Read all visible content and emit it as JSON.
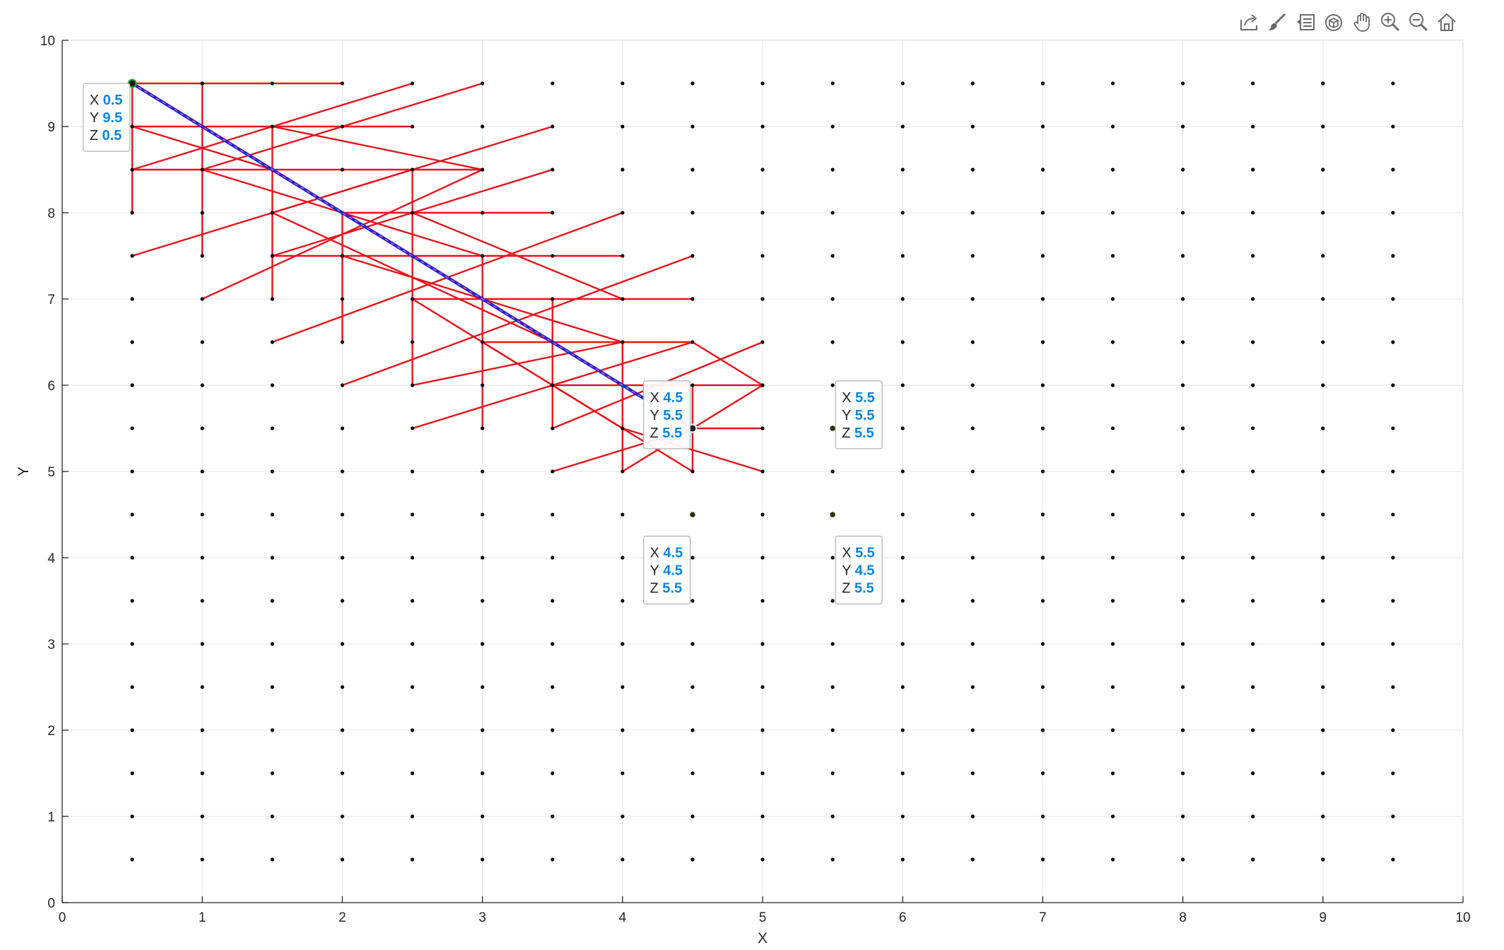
{
  "toolbar": {
    "buttons": [
      {
        "name": "export-icon"
      },
      {
        "name": "brush-icon"
      },
      {
        "name": "legend-icon"
      },
      {
        "name": "rotate-3d-icon"
      },
      {
        "name": "pan-hand-icon"
      },
      {
        "name": "zoom-in-icon"
      },
      {
        "name": "zoom-out-icon"
      },
      {
        "name": "home-icon"
      }
    ]
  },
  "chart_data": {
    "type": "scatter",
    "title": "",
    "xlabel": "X",
    "ylabel": "Y",
    "xlim": [
      0,
      10
    ],
    "ylim": [
      0,
      10
    ],
    "xticks": [
      0,
      1,
      2,
      3,
      4,
      5,
      6,
      7,
      8,
      9,
      10
    ],
    "yticks": [
      0,
      1,
      2,
      3,
      4,
      5,
      6,
      7,
      8,
      9,
      10
    ],
    "grid": true,
    "colors": {
      "points": "#000000",
      "edges": "#e8141b",
      "path": "#1f24d6",
      "tip_value": "#0a85e0",
      "grid": "#e6e6e6"
    },
    "grid_points": {
      "x_start": 0.5,
      "x_end": 9.5,
      "y_start": 0.5,
      "y_end": 9.5,
      "step": 0.5
    },
    "edges": [
      [
        [
          0.5,
          9.5
        ],
        [
          2.0,
          9.5
        ]
      ],
      [
        [
          0.5,
          9.0
        ],
        [
          2.5,
          9.0
        ]
      ],
      [
        [
          0.5,
          8.5
        ],
        [
          3.0,
          8.5
        ]
      ],
      [
        [
          2.0,
          8.0
        ],
        [
          3.5,
          8.0
        ]
      ],
      [
        [
          1.5,
          7.5
        ],
        [
          4.0,
          7.5
        ]
      ],
      [
        [
          2.5,
          7.0
        ],
        [
          4.5,
          7.0
        ]
      ],
      [
        [
          3.0,
          6.5
        ],
        [
          4.5,
          6.5
        ]
      ],
      [
        [
          3.5,
          6.0
        ],
        [
          5.0,
          6.0
        ]
      ],
      [
        [
          4.5,
          5.5
        ],
        [
          5.0,
          5.5
        ]
      ],
      [
        [
          0.5,
          9.5
        ],
        [
          0.5,
          8.0
        ]
      ],
      [
        [
          1.0,
          9.5
        ],
        [
          1.0,
          7.5
        ]
      ],
      [
        [
          1.5,
          9.0
        ],
        [
          1.5,
          7.0
        ]
      ],
      [
        [
          2.0,
          8.0
        ],
        [
          2.0,
          6.5
        ]
      ],
      [
        [
          2.5,
          8.5
        ],
        [
          2.5,
          6.0
        ]
      ],
      [
        [
          3.0,
          7.5
        ],
        [
          3.0,
          5.5
        ]
      ],
      [
        [
          3.5,
          7.0
        ],
        [
          3.5,
          5.5
        ]
      ],
      [
        [
          4.0,
          6.5
        ],
        [
          4.0,
          5.0
        ]
      ],
      [
        [
          4.5,
          6.0
        ],
        [
          4.5,
          5.0
        ]
      ],
      [
        [
          0.5,
          8.5
        ],
        [
          2.5,
          9.5
        ]
      ],
      [
        [
          0.5,
          7.5
        ],
        [
          3.5,
          9.0
        ]
      ],
      [
        [
          1.0,
          7.0
        ],
        [
          3.0,
          8.5
        ]
      ],
      [
        [
          1.5,
          7.5
        ],
        [
          3.5,
          8.5
        ]
      ],
      [
        [
          1.5,
          6.5
        ],
        [
          4.0,
          8.0
        ]
      ],
      [
        [
          2.0,
          6.0
        ],
        [
          4.5,
          7.5
        ]
      ],
      [
        [
          2.5,
          6.0
        ],
        [
          4.0,
          6.5
        ]
      ],
      [
        [
          2.5,
          5.5
        ],
        [
          4.5,
          6.5
        ]
      ],
      [
        [
          3.5,
          5.5
        ],
        [
          5.0,
          6.5
        ]
      ],
      [
        [
          3.5,
          5.0
        ],
        [
          4.5,
          5.5
        ]
      ],
      [
        [
          4.0,
          5.0
        ],
        [
          4.5,
          5.5
        ]
      ],
      [
        [
          4.5,
          5.5
        ],
        [
          5.0,
          6.0
        ]
      ],
      [
        [
          0.5,
          9.0
        ],
        [
          1.5,
          8.5
        ]
      ],
      [
        [
          1.0,
          8.5
        ],
        [
          3.0,
          9.5
        ]
      ],
      [
        [
          1.5,
          8.0
        ],
        [
          2.5,
          8.5
        ]
      ],
      [
        [
          0.5,
          9.5
        ],
        [
          4.5,
          5.5
        ]
      ],
      [
        [
          1.0,
          8.5
        ],
        [
          3.0,
          7.5
        ]
      ],
      [
        [
          1.5,
          8.0
        ],
        [
          3.5,
          6.5
        ]
      ],
      [
        [
          1.5,
          9.0
        ],
        [
          3.0,
          8.5
        ]
      ],
      [
        [
          2.0,
          7.5
        ],
        [
          4.0,
          6.5
        ]
      ],
      [
        [
          2.5,
          8.0
        ],
        [
          4.0,
          7.0
        ]
      ],
      [
        [
          2.5,
          7.0
        ],
        [
          4.0,
          5.5
        ]
      ],
      [
        [
          3.0,
          6.5
        ],
        [
          4.5,
          5.0
        ]
      ],
      [
        [
          3.5,
          6.0
        ],
        [
          4.0,
          5.5
        ]
      ],
      [
        [
          4.0,
          5.5
        ],
        [
          5.0,
          5.0
        ]
      ],
      [
        [
          4.5,
          6.5
        ],
        [
          5.0,
          6.0
        ]
      ]
    ],
    "path": [
      [
        0.5,
        9.5
      ],
      [
        4.15,
        5.85
      ]
    ],
    "path_start": [
      0.5,
      9.5
    ],
    "path_end": [
      4.5,
      5.5
    ],
    "highlighted_points": [
      [
        4.5,
        4.5
      ],
      [
        5.5,
        4.5
      ],
      [
        5.5,
        5.5
      ]
    ],
    "datatips": [
      {
        "px": 0.5,
        "py": 9.5,
        "labels": [
          "X",
          "Y",
          "Z"
        ],
        "values": [
          "0.5",
          "9.5",
          "0.5"
        ],
        "ax": 0.15,
        "ay": 9.5
      },
      {
        "px": 4.5,
        "py": 5.5,
        "labels": [
          "X",
          "Y",
          "Z"
        ],
        "values": [
          "4.5",
          "5.5",
          "5.5"
        ],
        "ax": 4.15,
        "ay": 6.05
      },
      {
        "px": 5.5,
        "py": 5.5,
        "labels": [
          "X",
          "Y",
          "Z"
        ],
        "values": [
          "5.5",
          "5.5",
          "5.5"
        ],
        "ax": 5.52,
        "ay": 6.05
      },
      {
        "px": 4.5,
        "py": 4.5,
        "labels": [
          "X",
          "Y",
          "Z"
        ],
        "values": [
          "4.5",
          "4.5",
          "5.5"
        ],
        "ax": 4.15,
        "ay": 4.25
      },
      {
        "px": 5.5,
        "py": 4.5,
        "labels": [
          "X",
          "Y",
          "Z"
        ],
        "values": [
          "5.5",
          "4.5",
          "5.5"
        ],
        "ax": 5.52,
        "ay": 4.25
      }
    ]
  }
}
